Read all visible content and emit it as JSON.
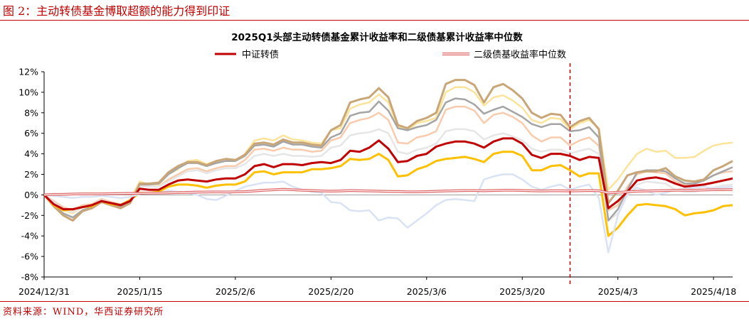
{
  "figure": {
    "title": "图 2：主动转债基金博取超额的能力得到印证",
    "source": "资料来源：WIND，华西证券研究所"
  },
  "chart_data": {
    "type": "line",
    "title": "2025Q1头部主动转债基金累计收益率和二级债基累计收益率中位数",
    "xlabel": "",
    "ylabel": "",
    "ylim": [
      -8,
      12
    ],
    "y_ticks": [
      "-8%",
      "-6%",
      "-4%",
      "-2%",
      "0%",
      "2%",
      "4%",
      "6%",
      "8%",
      "10%",
      "12%"
    ],
    "x_tick_labels": [
      "2024/12/31",
      "2025/1/15",
      "2025/2/6",
      "2025/2/20",
      "2025/3/6",
      "2025/3/20",
      "2025/4/3",
      "2025/4/18"
    ],
    "x_count": 73,
    "x_tick_index": [
      0,
      10,
      20,
      30,
      40,
      50,
      60,
      70
    ],
    "vline_index": 55,
    "grid": false,
    "legend": [
      {
        "name": "中证转债",
        "color": "#c00000",
        "style": "solid"
      },
      {
        "name": "二级债基收益率中位数",
        "color": "#e06666",
        "style": "double"
      }
    ],
    "series": [
      {
        "color": "#fbe49a",
        "width": 2.5,
        "values": [
          0,
          -0.8,
          -1.5,
          -1.8,
          -1.2,
          -1,
          -0.4,
          -0.9,
          -1,
          -0.5,
          1.3,
          1,
          1,
          2,
          2.5,
          3.3,
          3.4,
          3,
          3.3,
          3.5,
          3.3,
          4,
          5.3,
          5.5,
          5.3,
          5.8,
          5.4,
          5.3,
          5.1,
          5,
          6.3,
          6.5,
          8.4,
          8.8,
          9,
          9.8,
          9,
          6.6,
          6.3,
          7,
          7.2,
          7.5,
          10,
          10.5,
          10.5,
          10,
          8.7,
          9.5,
          9.7,
          9.2,
          8.5,
          7.3,
          7,
          7.5,
          7.4,
          6.4,
          7,
          7.3,
          6.5,
          0.5,
          1.5,
          2.8,
          4,
          4.5,
          4.2,
          4.3,
          3.6,
          3.6,
          3.7,
          4.3,
          4.8,
          5,
          5.1
        ]
      },
      {
        "color": "#f8cbad",
        "width": 2.5,
        "values": [
          0,
          -0.6,
          -1.2,
          -1.5,
          -1,
          -0.9,
          -0.4,
          -0.7,
          -0.9,
          -0.5,
          0.9,
          0.8,
          0.8,
          1.5,
          2,
          2.5,
          2.6,
          2.3,
          2.6,
          2.8,
          2.8,
          3.4,
          4.4,
          4.5,
          4.3,
          4.6,
          4.4,
          4.4,
          4.2,
          4.3,
          5.3,
          5.6,
          7,
          7.3,
          7.5,
          8,
          7.3,
          5.1,
          5,
          5.6,
          5.8,
          6.2,
          8.3,
          8.6,
          8.6,
          8.2,
          7,
          7.8,
          8,
          7.6,
          7,
          5.8,
          5.2,
          5.6,
          5.6,
          4.8,
          5.3,
          5.6,
          4.8,
          -1.5,
          -1,
          0.8,
          2,
          2.3,
          2.2,
          2.1,
          1.3,
          1,
          1.1,
          1.4,
          1.9,
          2.2,
          2.3
        ]
      },
      {
        "color": "#e7e6e6",
        "width": 2.5,
        "values": [
          0,
          -0.7,
          -1.4,
          -1.7,
          -1.2,
          -1,
          -0.5,
          -0.8,
          -1,
          -0.6,
          0.8,
          0.8,
          0.8,
          1.3,
          1.8,
          2.3,
          2.4,
          2.1,
          2.4,
          2.6,
          2.6,
          3,
          3.8,
          4,
          3.8,
          4,
          3.8,
          3.8,
          3.7,
          3.8,
          4.6,
          4.8,
          5.8,
          6,
          6.1,
          6.4,
          6,
          4.2,
          4,
          4.4,
          4.6,
          5,
          6.2,
          6.4,
          6.4,
          6.2,
          5.4,
          5.8,
          6,
          5.7,
          5.3,
          4.5,
          4.2,
          4.4,
          4.4,
          4,
          4.3,
          4.5,
          4,
          -2.5,
          -1.8,
          0,
          1,
          1.3,
          1.2,
          1.1,
          0.5,
          0.3,
          0.3,
          0.5,
          0.7,
          0.9,
          1
        ]
      },
      {
        "color": "#a5a5a5",
        "width": 2.5,
        "values": [
          0,
          -1,
          -1.8,
          -2.2,
          -1.5,
          -1.2,
          -0.6,
          -1,
          -1.2,
          -0.7,
          1,
          1,
          1.1,
          2,
          2.6,
          3.1,
          3.1,
          2.8,
          3.1,
          3.3,
          3.3,
          3.8,
          4.8,
          4.9,
          4.7,
          5.2,
          4.9,
          4.9,
          4.7,
          4.6,
          5.6,
          6,
          7.7,
          8,
          8.1,
          9.1,
          8.2,
          6.5,
          6.3,
          6.6,
          6.8,
          7.3,
          9,
          9.4,
          9.3,
          8.8,
          7.9,
          8.3,
          8.6,
          8.1,
          7.6,
          6.9,
          6.6,
          6.9,
          6.9,
          6.2,
          6.3,
          6.6,
          5.6,
          -2.5,
          -1.4,
          0.5,
          2.2,
          2.4,
          2.4,
          2.3,
          1.6,
          1.1,
          1.1,
          1.4,
          1.9,
          2.3,
          2.7
        ]
      },
      {
        "color": "#c9a678",
        "width": 3,
        "values": [
          0,
          -1.1,
          -2,
          -2.5,
          -1.6,
          -1.3,
          -0.7,
          -1,
          -1.3,
          -0.8,
          1.1,
          1.1,
          1.2,
          2.2,
          2.8,
          3.2,
          3.2,
          2.9,
          3.3,
          3.5,
          3.4,
          3.9,
          5,
          5.1,
          4.9,
          5.4,
          5.1,
          5.1,
          4.9,
          4.8,
          6.3,
          6.8,
          9,
          9.3,
          9.5,
          10.4,
          9.5,
          6.8,
          6.5,
          7.2,
          7.5,
          8,
          10.8,
          11.2,
          11.2,
          10.7,
          9,
          10.5,
          10.8,
          10.2,
          9.4,
          8,
          7.5,
          7.9,
          7.8,
          6.6,
          7.2,
          7.5,
          6.4,
          -0.8,
          0.4,
          1.9,
          2.2,
          2.3,
          2.3,
          2.6,
          1.8,
          1.4,
          1.3,
          1.5,
          2.4,
          2.8,
          3.3
        ]
      },
      {
        "color": "#ffc000",
        "width": 3,
        "values": [
          0,
          -1,
          -1.5,
          -1.4,
          -1.2,
          -1.1,
          -0.6,
          -0.9,
          -1,
          -0.5,
          0.2,
          0.2,
          0.3,
          0.8,
          1,
          1,
          0.9,
          0.7,
          0.9,
          1,
          1,
          1.3,
          2.2,
          2.3,
          2,
          2.2,
          2.2,
          2.2,
          2.5,
          2.5,
          2.6,
          2.8,
          3.5,
          3.4,
          3.5,
          4,
          3.4,
          1.8,
          1.9,
          2.5,
          2.8,
          3.3,
          3.5,
          3.6,
          3.7,
          3.5,
          3.2,
          4,
          4.2,
          4.2,
          3.8,
          2.4,
          2.4,
          2.8,
          2.9,
          2.4,
          1.8,
          2.1,
          2.1,
          -4,
          -3.2,
          -2,
          -1,
          -0.9,
          -1,
          -1.1,
          -1.4,
          -2,
          -1.8,
          -1.7,
          -1.5,
          -1.1,
          -1
        ]
      },
      {
        "color": "#c00000",
        "width": 3,
        "values": [
          0,
          -0.9,
          -1.4,
          -1.4,
          -1.2,
          -1,
          -0.6,
          -0.8,
          -1,
          -0.6,
          0.6,
          0.5,
          0.5,
          1,
          1.4,
          1.5,
          1.4,
          1.3,
          1.5,
          1.6,
          1.6,
          2,
          2.8,
          3,
          2.7,
          3,
          3,
          2.9,
          3.1,
          3.2,
          3.1,
          3.4,
          4.3,
          4.2,
          4.6,
          5.3,
          4.5,
          3.2,
          3.3,
          3.8,
          4,
          4.7,
          5,
          5.2,
          5.2,
          5,
          4.6,
          5.2,
          5.5,
          5.5,
          5,
          3.9,
          3.6,
          4,
          4,
          3.8,
          3.4,
          3.7,
          3.6,
          -1.3,
          -0.6,
          0.3,
          1.4,
          1.6,
          1.7,
          1.5,
          1.1,
          0.8,
          0.9,
          1,
          1.2,
          1.4,
          1.6
        ]
      },
      {
        "color": "#dae3f3",
        "width": 2.5,
        "values": [
          0,
          -0.1,
          -0.2,
          -0.3,
          -0.2,
          -0.2,
          -0.1,
          -0.2,
          -0.3,
          -0.2,
          0.1,
          0.2,
          0.2,
          0.4,
          0.3,
          0.2,
          0,
          -0.4,
          -0.5,
          -0.1,
          0.4,
          0.8,
          1,
          1.2,
          1.2,
          1.3,
          0.8,
          0.5,
          0.3,
          0.2,
          -0.7,
          -0.8,
          -1.5,
          -1.6,
          -1.5,
          -2.5,
          -2.2,
          -2.3,
          -3.2,
          -2.5,
          -1.8,
          -1,
          -0.5,
          -0.4,
          -0.5,
          -0.6,
          1.5,
          1.8,
          2,
          2,
          1.5,
          0.8,
          0.5,
          0.8,
          1,
          0.5,
          0.8,
          1,
          -0.3,
          -5.6,
          -2,
          0.1,
          0.7,
          0.4,
          0,
          0.2,
          0.5,
          0.6,
          0.7,
          0.8,
          0.6,
          0.7,
          0.8
        ]
      },
      {
        "color": "#e06666",
        "width": 1.5,
        "double": true,
        "values": [
          0,
          0.05,
          0.05,
          0.08,
          0.1,
          0.1,
          0.1,
          0.12,
          0.13,
          0.14,
          0.15,
          0.17,
          0.18,
          0.2,
          0.22,
          0.24,
          0.27,
          0.28,
          0.29,
          0.28,
          0.3,
          0.32,
          0.38,
          0.45,
          0.5,
          0.55,
          0.5,
          0.45,
          0.42,
          0.38,
          0.36,
          0.38,
          0.42,
          0.4,
          0.38,
          0.36,
          0.34,
          0.33,
          0.3,
          0.3,
          0.32,
          0.35,
          0.38,
          0.4,
          0.42,
          0.42,
          0.4,
          0.42,
          0.45,
          0.45,
          0.43,
          0.4,
          0.38,
          0.4,
          0.4,
          0.38,
          0.4,
          0.42,
          0.4,
          0.2,
          0.25,
          0.3,
          0.35,
          0.38,
          0.4,
          0.42,
          0.45,
          0.45,
          0.45,
          0.48,
          0.5,
          0.5,
          0.52
        ]
      }
    ]
  }
}
